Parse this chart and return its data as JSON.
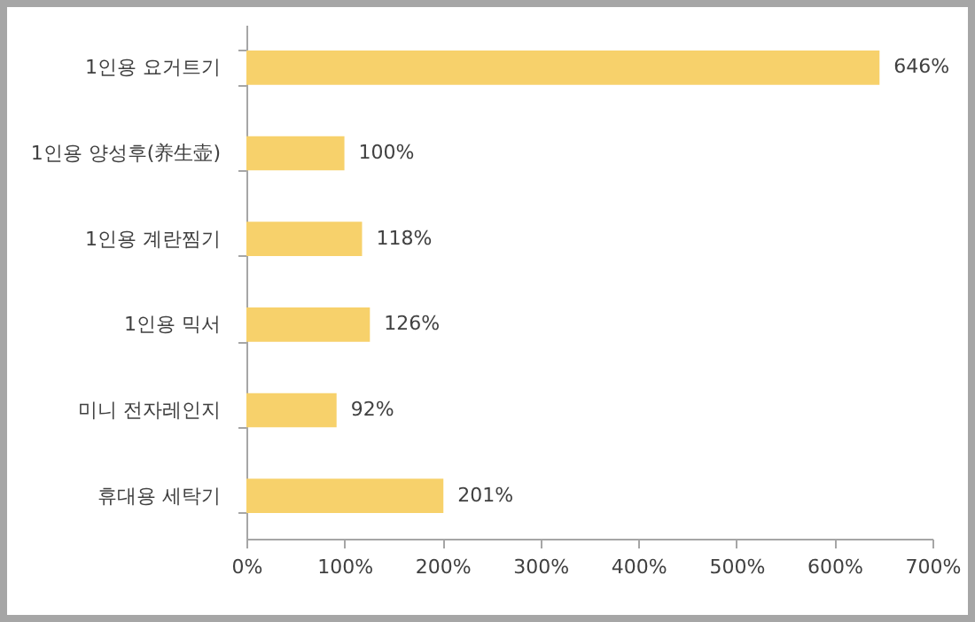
{
  "chart_data": {
    "type": "bar",
    "orientation": "horizontal",
    "categories": [
      "1인용 요거트기",
      "1인용 양성후(养生壶)",
      "1인용 계란찜기",
      "1인용 믹서",
      "미니 전자레인지",
      "휴대용 세탁기"
    ],
    "values": [
      646,
      100,
      118,
      126,
      92,
      201
    ],
    "value_labels": [
      "646%",
      "100%",
      "118%",
      "126%",
      "92%",
      "201%"
    ],
    "color": "#f7d16b",
    "xlim": [
      0,
      700
    ],
    "xticks": [
      {
        "value": 0,
        "label": "0%"
      },
      {
        "value": 100,
        "label": "100%"
      },
      {
        "value": 200,
        "label": "200%"
      },
      {
        "value": 300,
        "label": "300%"
      },
      {
        "value": 400,
        "label": "400%"
      },
      {
        "value": 500,
        "label": "500%"
      },
      {
        "value": 600,
        "label": "600%"
      },
      {
        "value": 700,
        "label": "700%"
      }
    ],
    "grid": false
  }
}
